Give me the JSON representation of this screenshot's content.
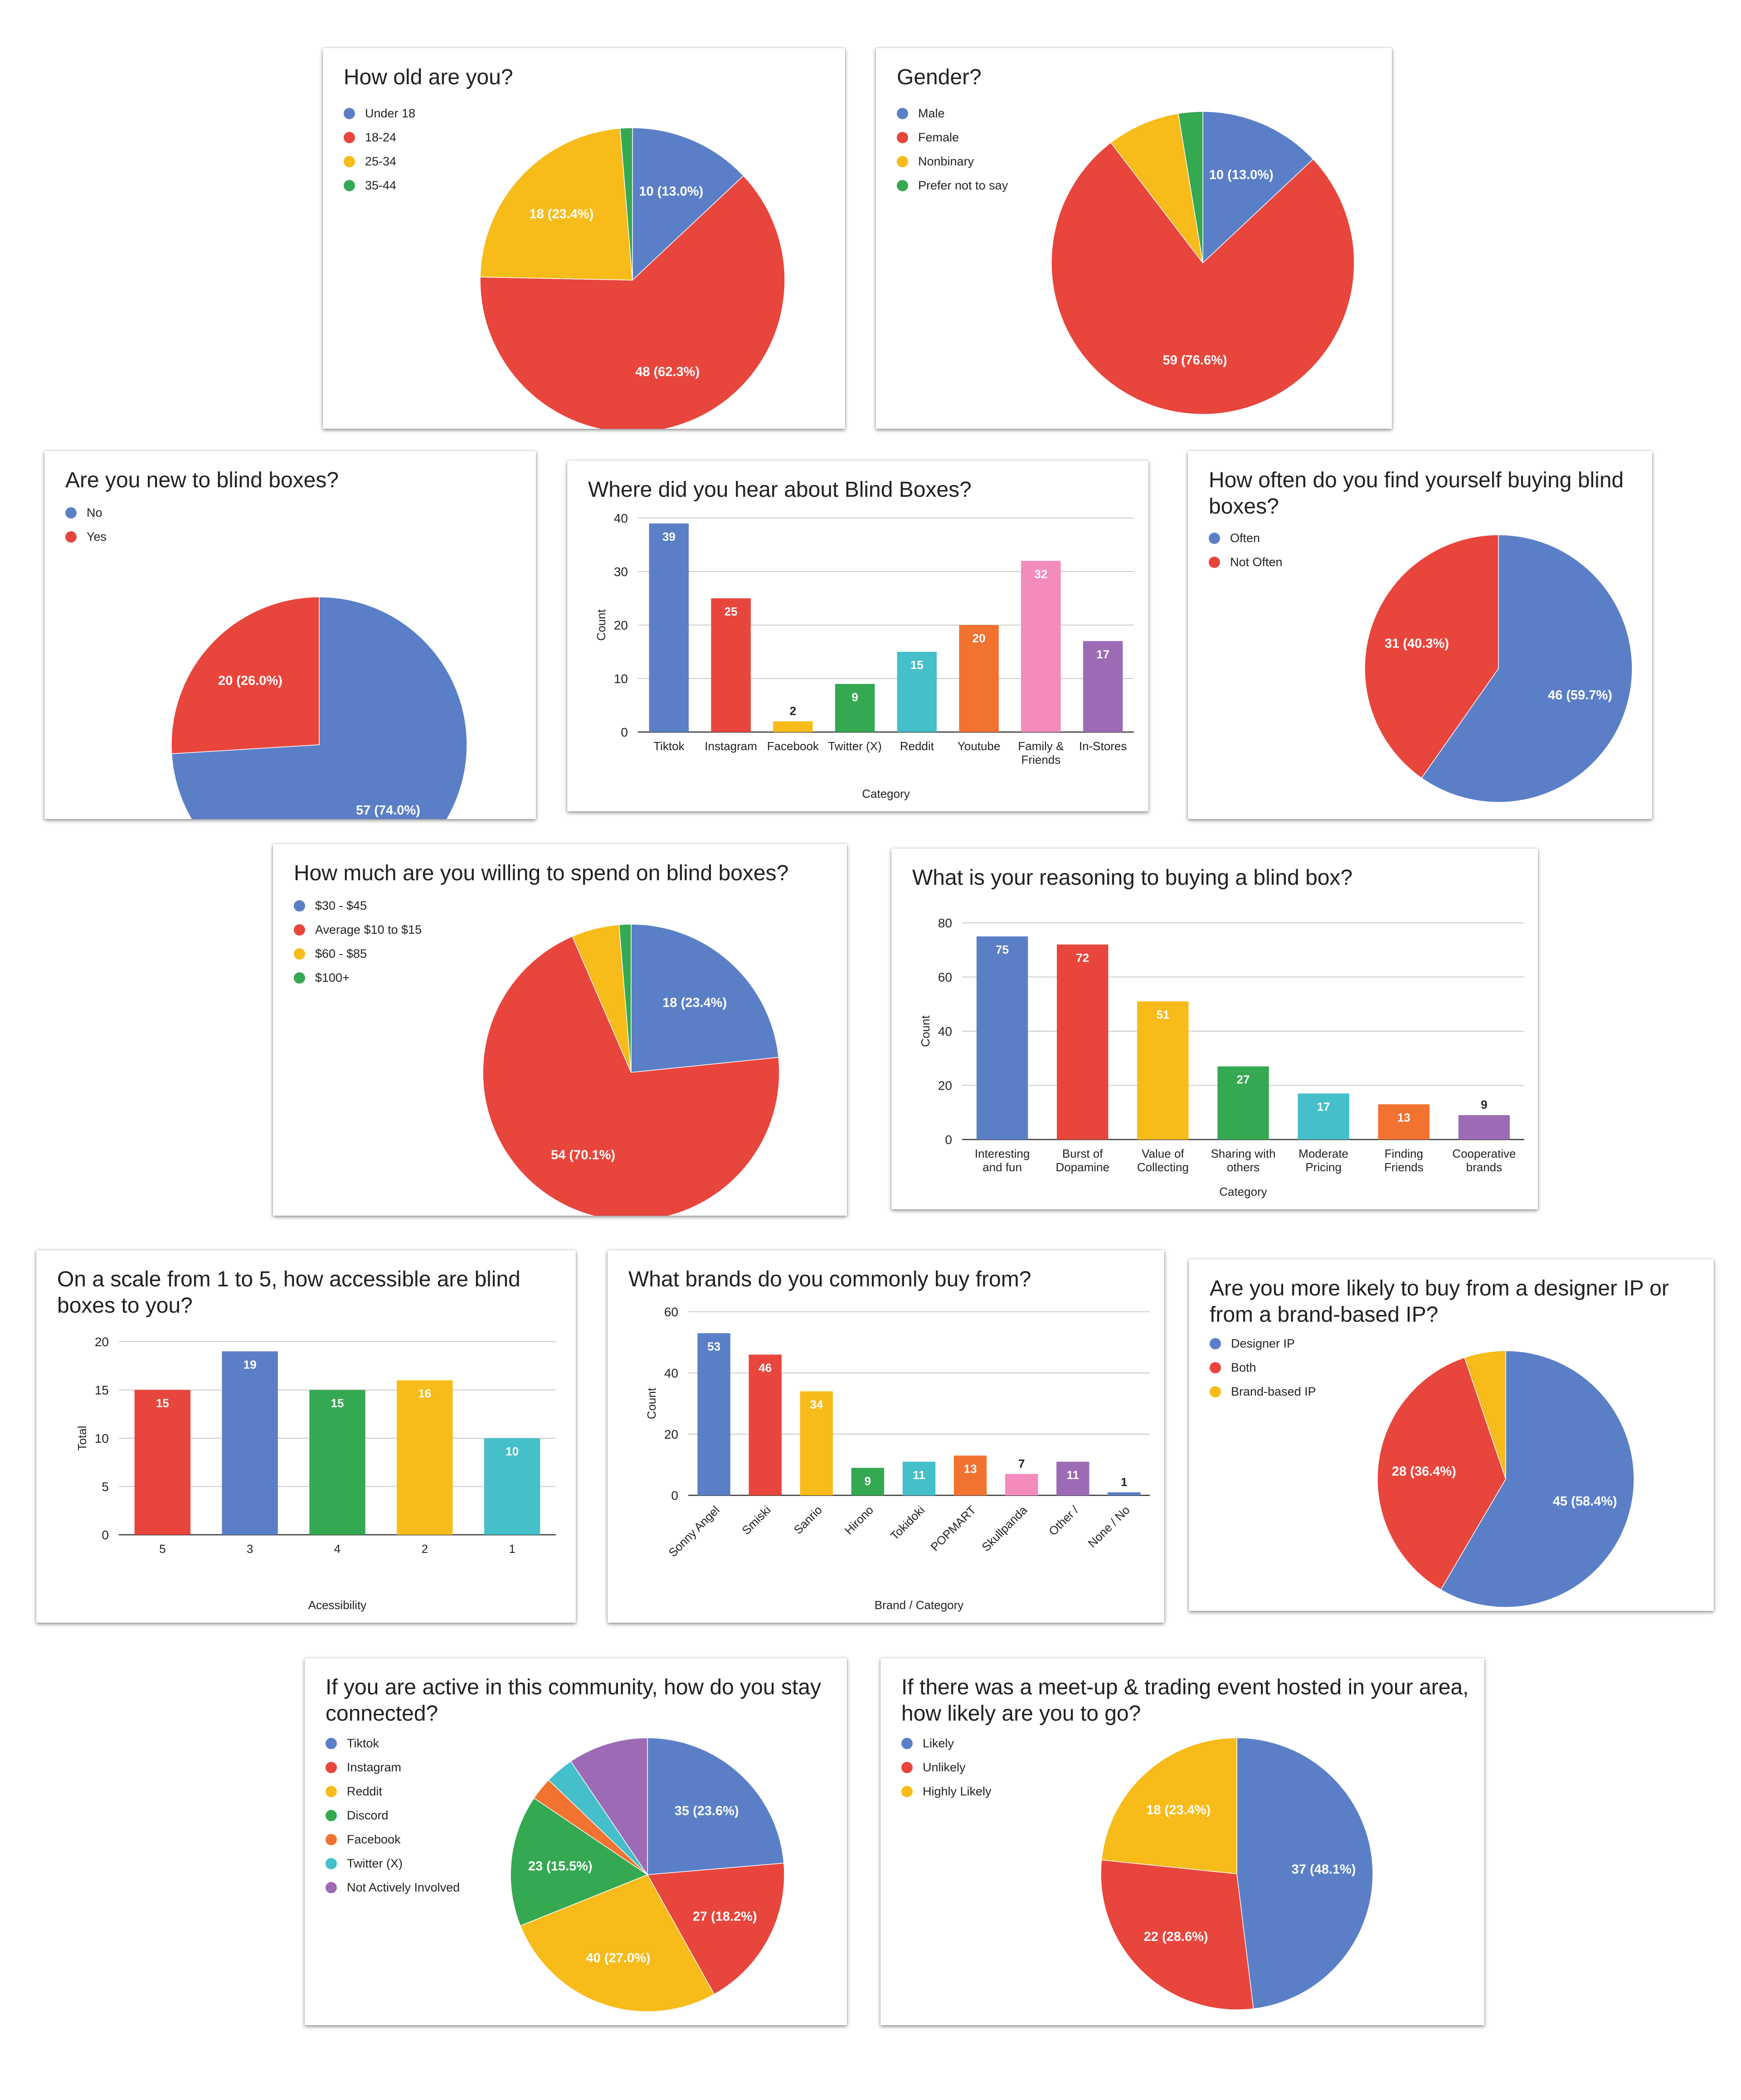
{
  "colors": {
    "blue": "#5b7fc7",
    "red": "#e8453c",
    "yellow": "#f7bb1a",
    "green": "#35a852",
    "cyan": "#45bfc9",
    "orange": "#f27230",
    "pink": "#f48bbd",
    "purple": "#9d6bb5",
    "grid": "#cccccc"
  },
  "chart_data": [
    {
      "id": "age",
      "type": "pie",
      "title": "How old are you?",
      "legend_position": "left",
      "slices": [
        {
          "label": "Under 18",
          "value": 10,
          "text": "10 (13.0%)",
          "color": "#5b7fc7"
        },
        {
          "label": "18-24",
          "value": 48,
          "text": "48 (62.3%)",
          "color": "#e8453c"
        },
        {
          "label": "25-34",
          "value": 18,
          "text": "18 (23.4%)",
          "color": "#f7bb1a"
        },
        {
          "label": "35-44",
          "value": 1,
          "text": "",
          "color": "#35a852"
        }
      ]
    },
    {
      "id": "gender",
      "type": "pie",
      "title": "Gender?",
      "legend_position": "left",
      "slices": [
        {
          "label": "Male",
          "value": 10,
          "text": "10 (13.0%)",
          "color": "#5b7fc7"
        },
        {
          "label": "Female",
          "value": 59,
          "text": "59 (76.6%)",
          "color": "#e8453c"
        },
        {
          "label": "Nonbinary",
          "value": 6,
          "text": "",
          "color": "#f7bb1a"
        },
        {
          "label": "Prefer not to say",
          "value": 2,
          "text": "",
          "color": "#35a852"
        }
      ]
    },
    {
      "id": "new",
      "type": "pie",
      "title": "Are you new to blind boxes?",
      "legend_position": "left",
      "slices": [
        {
          "label": "No",
          "value": 57,
          "text": "57 (74.0%)",
          "color": "#5b7fc7"
        },
        {
          "label": "Yes",
          "value": 20,
          "text": "20 (26.0%)",
          "color": "#e8453c"
        }
      ]
    },
    {
      "id": "hear",
      "type": "bar",
      "title": "Where did you hear about Blind Boxes?",
      "xlabel": "Category",
      "ylabel": "Count",
      "ylim": [
        0,
        40
      ],
      "yticks": [
        0,
        10,
        20,
        30,
        40
      ],
      "grid": true,
      "categories": [
        [
          "Tiktok"
        ],
        [
          "Instagram"
        ],
        [
          "Facebook"
        ],
        [
          "Twitter (X)"
        ],
        [
          "Reddit"
        ],
        [
          "Youtube"
        ],
        [
          "Family &",
          "Friends"
        ],
        [
          "In-Stores"
        ]
      ],
      "values": [
        39,
        25,
        2,
        9,
        15,
        20,
        32,
        17
      ],
      "colors": [
        "#5b7fc7",
        "#e8453c",
        "#f7bb1a",
        "#35a852",
        "#45bfc9",
        "#f27230",
        "#f48bbd",
        "#9d6bb5"
      ]
    },
    {
      "id": "often",
      "type": "pie",
      "title": "How often do you find yourself buying blind boxes?",
      "legend_position": "left",
      "slices": [
        {
          "label": "Often",
          "value": 46,
          "text": "46 (59.7%)",
          "color": "#5b7fc7"
        },
        {
          "label": "Not Often",
          "value": 31,
          "text": "31 (40.3%)",
          "color": "#e8453c"
        }
      ]
    },
    {
      "id": "spend",
      "type": "pie",
      "title": "How much are you willing to spend on blind boxes?",
      "legend_position": "left",
      "slices": [
        {
          "label": "$30 - $45",
          "value": 18,
          "text": "18 (23.4%)",
          "color": "#5b7fc7"
        },
        {
          "label": "Average $10 to $15",
          "value": 54,
          "text": "54 (70.1%)",
          "color": "#e8453c"
        },
        {
          "label": "$60 - $85",
          "value": 4,
          "text": "",
          "color": "#f7bb1a"
        },
        {
          "label": "$100+",
          "value": 1,
          "text": "",
          "color": "#35a852"
        }
      ]
    },
    {
      "id": "reason",
      "type": "bar",
      "title": "What is your reasoning to buying a blind box?",
      "xlabel": "Category",
      "ylabel": "Count",
      "ylim": [
        0,
        80
      ],
      "yticks": [
        0,
        20,
        40,
        60,
        80
      ],
      "grid": true,
      "categories": [
        [
          "Interesting",
          "and fun"
        ],
        [
          "Burst of",
          "Dopamine"
        ],
        [
          "Value of",
          "Collecting"
        ],
        [
          "Sharing with",
          "others"
        ],
        [
          "Moderate",
          "Pricing"
        ],
        [
          "Finding",
          "Friends"
        ],
        [
          "Cooperative",
          "brands"
        ]
      ],
      "values": [
        75,
        72,
        51,
        27,
        17,
        13,
        9
      ],
      "colors": [
        "#5b7fc7",
        "#e8453c",
        "#f7bb1a",
        "#35a852",
        "#45bfc9",
        "#f27230",
        "#9d6bb5"
      ]
    },
    {
      "id": "access",
      "type": "bar",
      "title": "On a scale from 1 to 5, how accessible are blind boxes to you?",
      "xlabel": "Acessibility",
      "ylabel": "Total",
      "ylim": [
        0,
        20
      ],
      "yticks": [
        0,
        5,
        10,
        15,
        20
      ],
      "grid": true,
      "categories": [
        [
          "5"
        ],
        [
          "3"
        ],
        [
          "4"
        ],
        [
          "2"
        ],
        [
          "1"
        ]
      ],
      "values": [
        15,
        19,
        15,
        16,
        10
      ],
      "colors": [
        "#e8453c",
        "#5b7fc7",
        "#35a852",
        "#f7bb1a",
        "#45bfc9"
      ]
    },
    {
      "id": "brands",
      "type": "bar",
      "title": "What brands do you commonly buy from?",
      "xlabel": "Brand / Category",
      "ylabel": "Count",
      "ylim": [
        0,
        60
      ],
      "yticks": [
        0,
        20,
        40,
        60
      ],
      "grid": true,
      "rotated_labels": true,
      "categories": [
        [
          "Sonny Angel"
        ],
        [
          "Smiski"
        ],
        [
          "Sanrio"
        ],
        [
          "Hirono"
        ],
        [
          "Tokidoki"
        ],
        [
          "POPMART"
        ],
        [
          "Skullpanda"
        ],
        [
          "Other /"
        ],
        [
          "None / No"
        ]
      ],
      "values": [
        53,
        46,
        34,
        9,
        11,
        13,
        7,
        11,
        1
      ],
      "colors": [
        "#5b7fc7",
        "#e8453c",
        "#f7bb1a",
        "#35a852",
        "#45bfc9",
        "#f27230",
        "#f48bbd",
        "#9d6bb5",
        "#5b7fc7"
      ]
    },
    {
      "id": "ip",
      "type": "pie",
      "title": "Are you more likely to buy from a designer IP or from a brand-based IP?",
      "legend_position": "left",
      "slices": [
        {
          "label": "Designer IP",
          "value": 45,
          "text": "45 (58.4%)",
          "color": "#5b7fc7"
        },
        {
          "label": "Both",
          "value": 28,
          "text": "28 (36.4%)",
          "color": "#e8453c"
        },
        {
          "label": "Brand-based IP",
          "value": 4,
          "text": "",
          "color": "#f7bb1a"
        }
      ]
    },
    {
      "id": "community",
      "type": "pie",
      "title": "If you are active in this community, how do you stay connected?",
      "legend_position": "left",
      "slices": [
        {
          "label": "Tiktok",
          "value": 35,
          "text": "35 (23.6%)",
          "color": "#5b7fc7"
        },
        {
          "label": "Instagram",
          "value": 27,
          "text": "27 (18.2%)",
          "color": "#e8453c"
        },
        {
          "label": "Reddit",
          "value": 40,
          "text": "40 (27.0%)",
          "color": "#f7bb1a"
        },
        {
          "label": "Discord",
          "value": 23,
          "text": "23 (15.5%)",
          "color": "#35a852"
        },
        {
          "label": "Facebook",
          "value": 4,
          "text": "",
          "color": "#f27230"
        },
        {
          "label": "Twitter (X)",
          "value": 5,
          "text": "",
          "color": "#45bfc9"
        },
        {
          "label": "Not Actively Involved",
          "value": 14,
          "text": "",
          "color": "#9d6bb5"
        }
      ]
    },
    {
      "id": "meetup",
      "type": "pie",
      "title": "If there was a meet-up & trading event hosted in your area, how likely are you to go?",
      "legend_position": "left",
      "slices": [
        {
          "label": "Likely",
          "value": 37,
          "text": "37 (48.1%)",
          "color": "#5b7fc7"
        },
        {
          "label": "Unlikely",
          "value": 22,
          "text": "22 (28.6%)",
          "color": "#e8453c"
        },
        {
          "label": "Highly Likely",
          "value": 18,
          "text": "18 (23.4%)",
          "color": "#f7bb1a"
        }
      ]
    }
  ]
}
